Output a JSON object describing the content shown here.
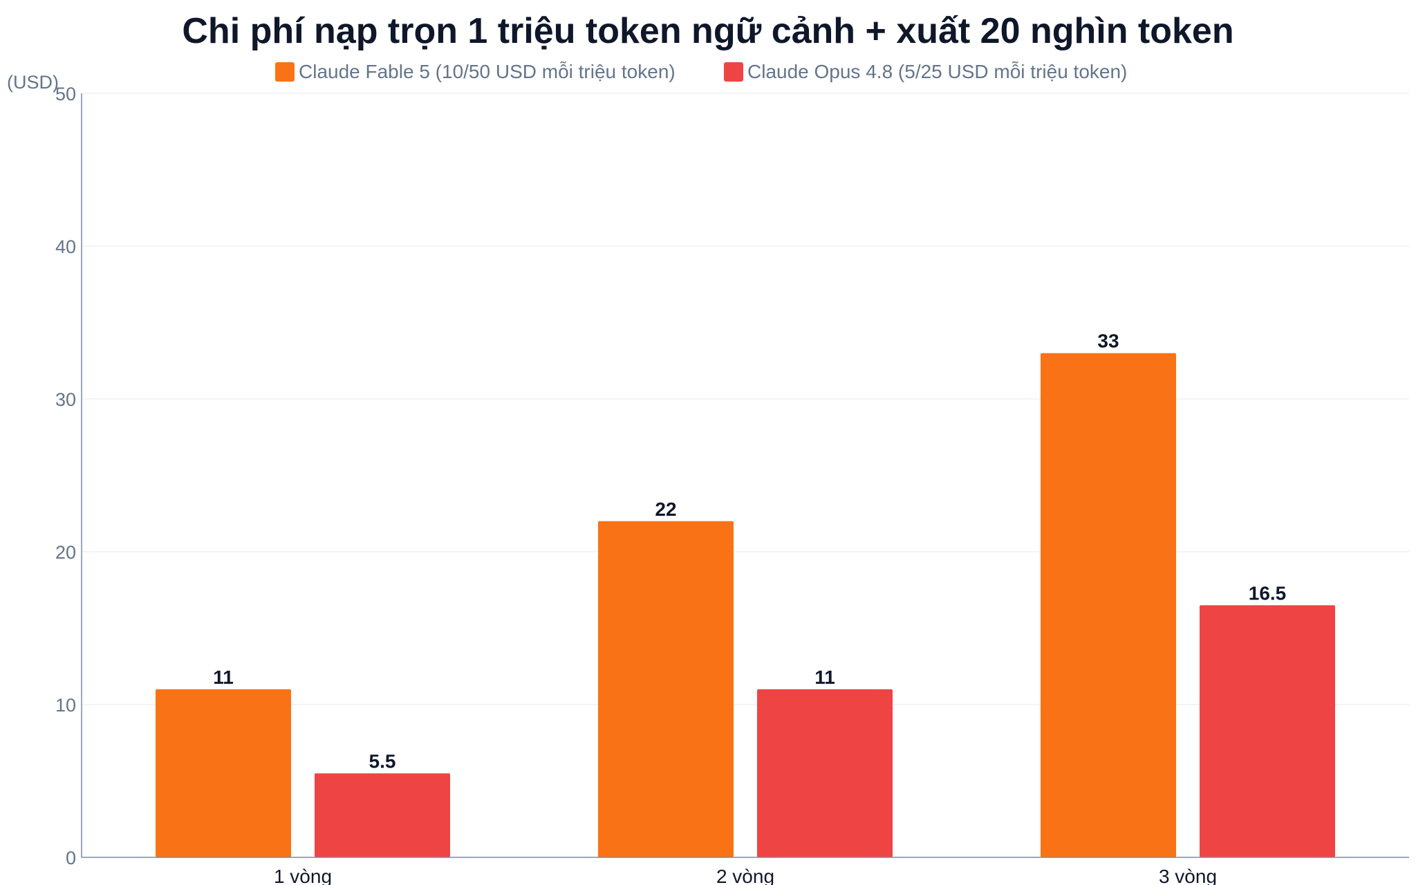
{
  "chart_data": {
    "type": "bar",
    "title": "Chi phí nạp trọn 1 triệu token ngữ cảnh + xuất 20 nghìn token",
    "ylabel": "(USD)",
    "xlabel": "",
    "categories": [
      "1 vòng",
      "2 vòng",
      "3 vòng"
    ],
    "series": [
      {
        "name": "Claude Fable 5 (10/50 USD mỗi triệu token)",
        "color": "#f97316",
        "values": [
          11,
          22,
          33
        ],
        "labels": [
          "11",
          "22",
          "33"
        ]
      },
      {
        "name": "Claude Opus 4.8 (5/25 USD mỗi triệu token)",
        "color": "#ef4444",
        "values": [
          5.5,
          11,
          16.5
        ],
        "labels": [
          "5.5",
          "11",
          "16.5"
        ]
      }
    ],
    "ylim": [
      0,
      50
    ],
    "yticks": [
      "0",
      "10",
      "20",
      "30",
      "40",
      "50"
    ],
    "grid": true,
    "legend_position": "top-center"
  }
}
